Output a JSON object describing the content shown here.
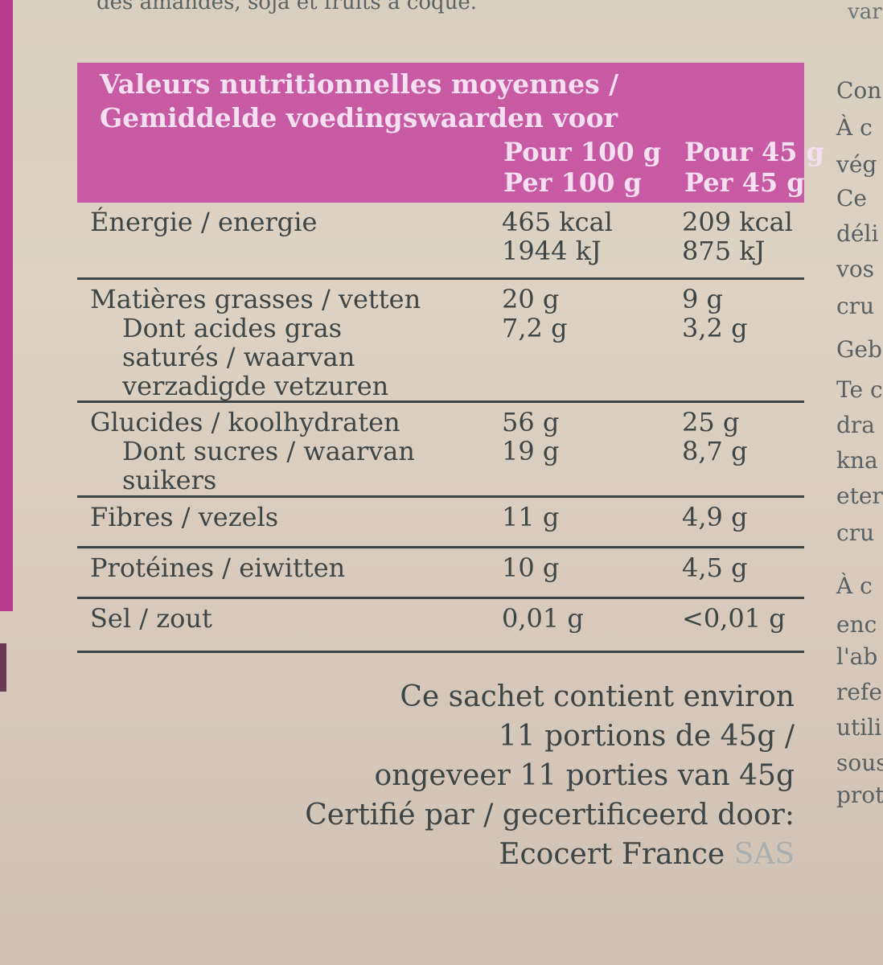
{
  "top_fragment": "des amandes, soja et fruits à coque.",
  "right_top_fragment": "var",
  "header": {
    "title_line1": "Valeurs nutritionnelles moyennes /",
    "title_line2": "Gemiddelde voedingswaarden voor",
    "col1_line1": "Pour 100 g",
    "col1_line2": "Per 100 g",
    "col2_line1": "Pour 45 g",
    "col2_line2": "Per 45 g"
  },
  "rows": [
    {
      "label_lines": [
        "Énergie / energie"
      ],
      "v1_lines": [
        "465 kcal",
        "1944 kJ"
      ],
      "v2_lines": [
        "209 kcal",
        "875 kJ"
      ]
    },
    {
      "label_lines": [
        "Matières grasses / vetten",
        "Dont acides gras",
        "saturés / waarvan",
        "verzadigde vetzuren"
      ],
      "v1_lines": [
        "20 g",
        "7,2 g"
      ],
      "v2_lines": [
        "9 g",
        "3,2 g"
      ]
    },
    {
      "label_lines": [
        "Glucides / koolhydraten",
        "Dont sucres / waarvan",
        "suikers"
      ],
      "v1_lines": [
        "56 g",
        "19 g"
      ],
      "v2_lines": [
        "25 g",
        "8,7 g"
      ]
    },
    {
      "label_lines": [
        "Fibres / vezels"
      ],
      "v1_lines": [
        "11 g"
      ],
      "v2_lines": [
        "4,9 g"
      ]
    },
    {
      "label_lines": [
        "Protéines / eiwitten"
      ],
      "v1_lines": [
        "10 g"
      ],
      "v2_lines": [
        "4,5 g"
      ]
    },
    {
      "label_lines": [
        "Sel / zout"
      ],
      "v1_lines": [
        "0,01 g"
      ],
      "v2_lines": [
        "<0,01 g"
      ]
    }
  ],
  "footer": {
    "line1": "Ce sachet contient environ",
    "line2": "11 portions de 45g /",
    "line3": "ongeveer 11 porties van 45g",
    "line4": "Certifié par / gecertificeerd door:",
    "line5_dark": "Ecocert France",
    "line5_faded": " SAS"
  },
  "right_column_fragments": [
    "Con",
    "À c",
    "vég",
    "Ce",
    "déli",
    "vos",
    "cru",
    "Geb",
    "Te c",
    "dra",
    "kna",
    "eter",
    "cru",
    "À c",
    "enc",
    "l'ab",
    "refe",
    "utili",
    "sous",
    "prot"
  ]
}
